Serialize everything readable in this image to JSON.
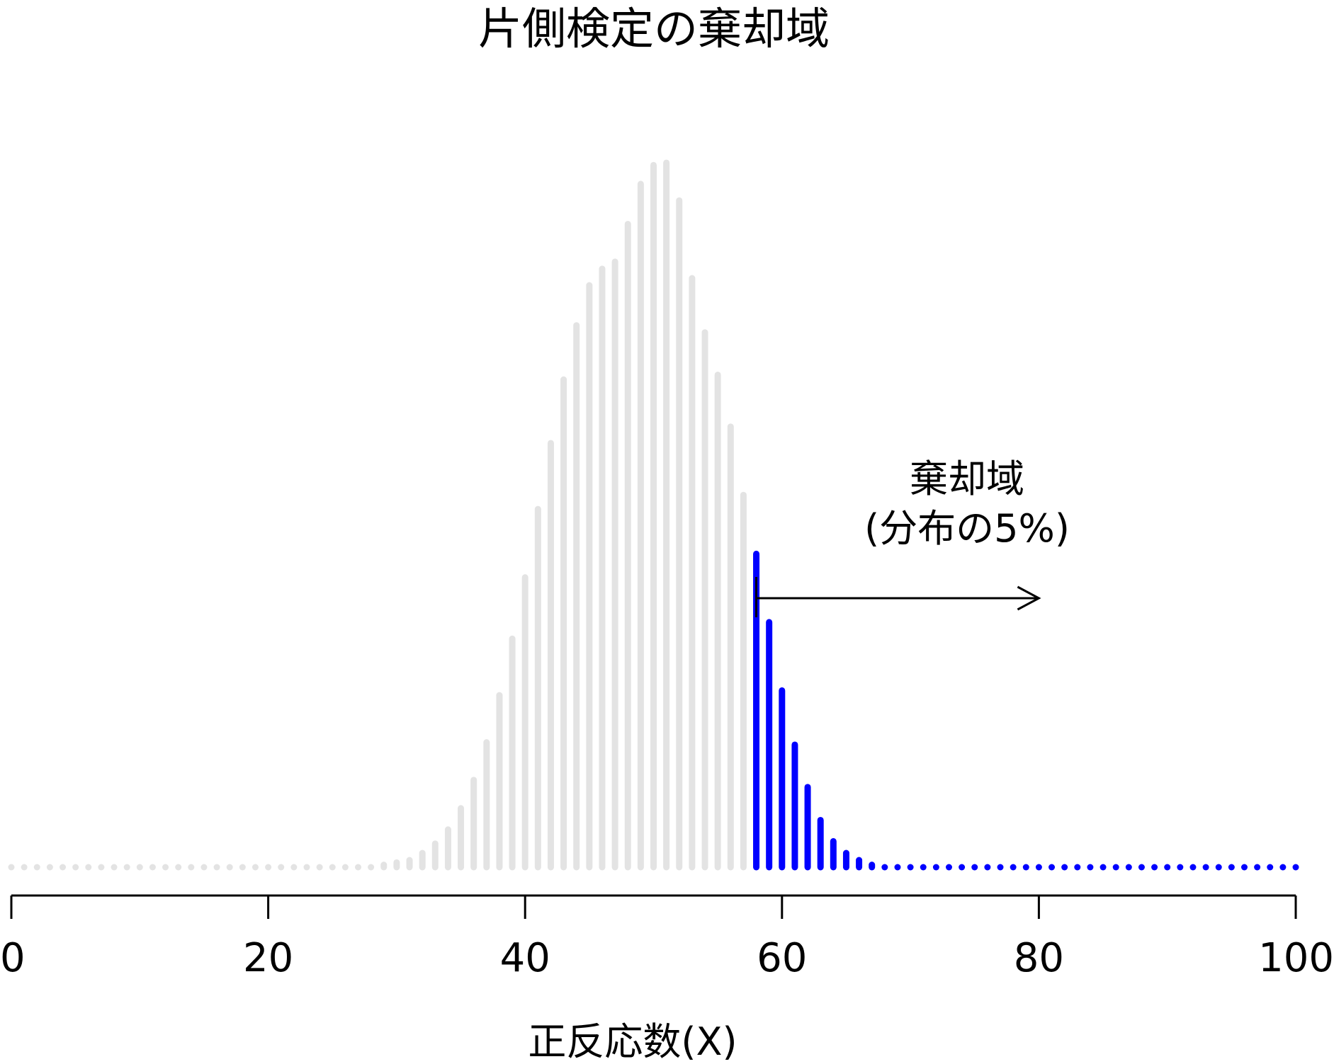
{
  "chart_data": {
    "type": "bar",
    "title": "片側検定の棄却域",
    "xlabel": "正反応数(X)",
    "ylabel": "",
    "distribution": {
      "family": "binomial",
      "n": 100,
      "p": 0.5
    },
    "x": [
      0,
      1,
      2,
      3,
      4,
      5,
      6,
      7,
      8,
      9,
      10,
      11,
      12,
      13,
      14,
      15,
      16,
      17,
      18,
      19,
      20,
      21,
      22,
      23,
      24,
      25,
      26,
      27,
      28,
      29,
      30,
      31,
      32,
      33,
      34,
      35,
      36,
      37,
      38,
      39,
      40,
      41,
      42,
      43,
      44,
      45,
      46,
      47,
      48,
      49,
      50,
      51,
      52,
      53,
      54,
      55,
      56,
      57,
      58,
      59,
      60,
      61,
      62,
      63,
      64,
      65,
      66,
      67,
      68,
      69,
      70,
      71,
      72,
      73,
      74,
      75,
      76,
      77,
      78,
      79,
      80,
      81,
      82,
      83,
      84,
      85,
      86,
      87,
      88,
      89,
      90,
      91,
      92,
      93,
      94,
      95,
      96,
      97,
      98,
      99,
      100
    ],
    "values": [
      0,
      0,
      0,
      0,
      0,
      0,
      0,
      0,
      0,
      0,
      0,
      0,
      0,
      0,
      0,
      0,
      0,
      0,
      0,
      0,
      0,
      0,
      0,
      0,
      0,
      0,
      0,
      0,
      0,
      0.0001,
      0.0002,
      0.0003,
      0.0006,
      0.001,
      0.0016,
      0.0025,
      0.0037,
      0.0053,
      0.0073,
      0.0097,
      0.0123,
      0.0152,
      0.018,
      0.0207,
      0.023,
      0.0247,
      0.0254,
      0.0257,
      0.0273,
      0.029,
      0.0298,
      0.0299,
      0.0283,
      0.025,
      0.0227,
      0.0209,
      0.0187,
      0.0158,
      0.0133,
      0.0104,
      0.0075,
      0.0052,
      0.0034,
      0.002,
      0.0011,
      0.0006,
      0.0003,
      0.0001,
      0,
      0,
      0,
      0,
      0,
      0,
      0,
      0,
      0,
      0,
      0,
      0,
      0,
      0,
      0,
      0,
      0,
      0,
      0,
      0,
      0,
      0,
      0,
      0,
      0,
      0,
      0,
      0,
      0,
      0,
      0,
      0,
      0
    ],
    "critical_value": 58,
    "xlim": [
      0,
      100
    ],
    "ylim": [
      0,
      0.0305
    ],
    "xticks": [
      0,
      20,
      40,
      60,
      80,
      100
    ],
    "xtick_labels": [
      "0",
      "20",
      "40",
      "60",
      "80",
      "100"
    ],
    "colors": {
      "acceptance": "#e3e3e3",
      "rejection": "#0000ff",
      "axis": "#000000"
    },
    "annotation": {
      "line1": "棄却域",
      "line2": "(分布の5%)",
      "arrow_from_x": 58,
      "arrow_to_x": 80
    },
    "grid": false,
    "legend": "none"
  }
}
